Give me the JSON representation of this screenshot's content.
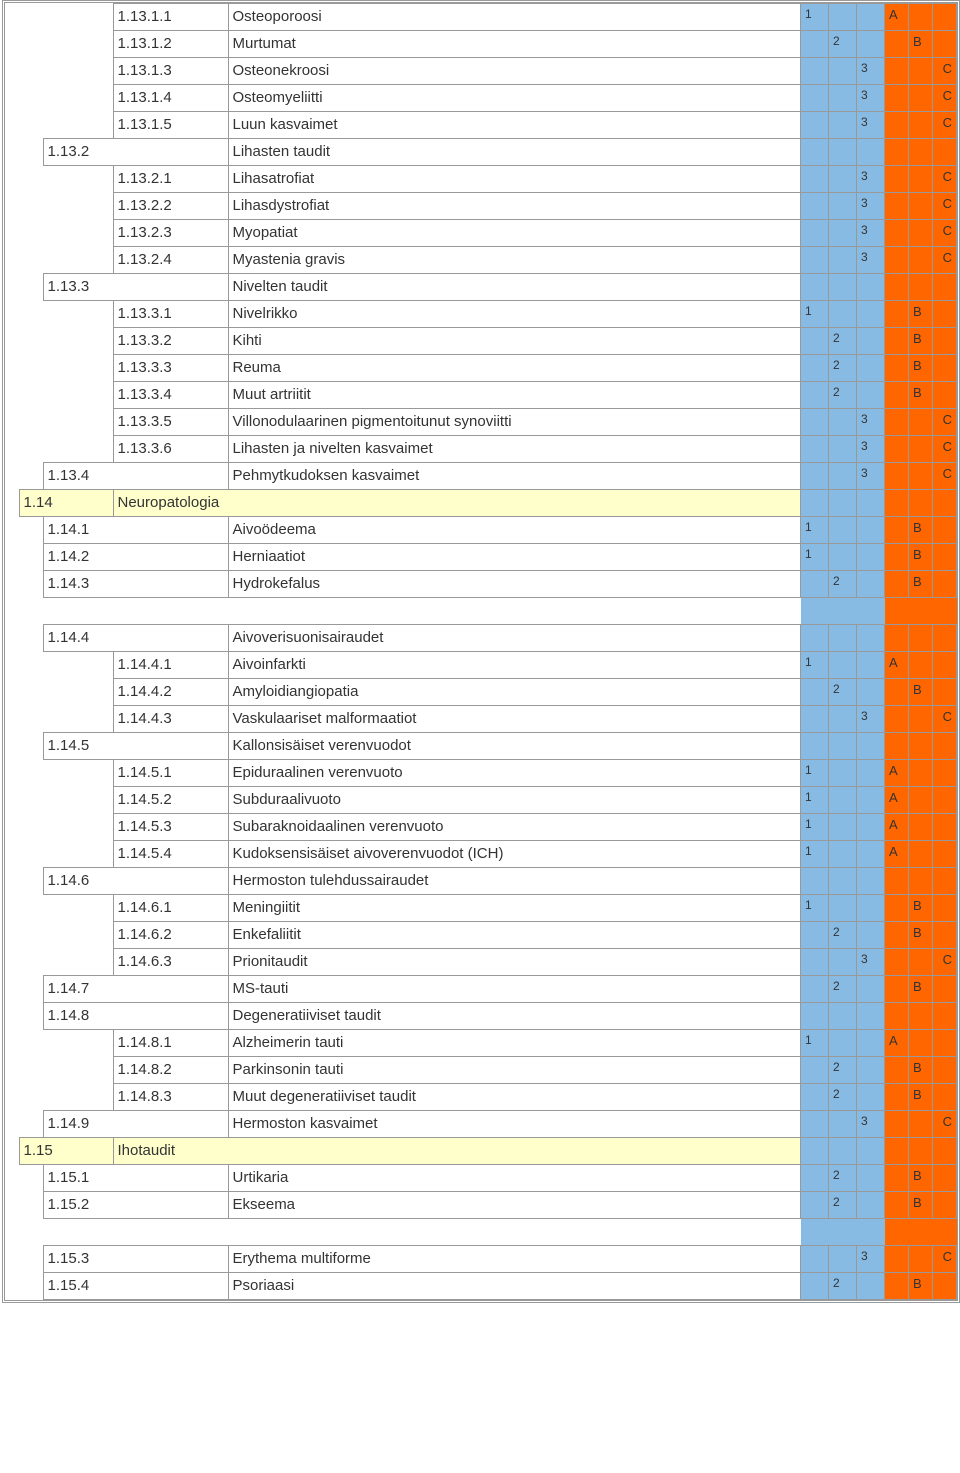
{
  "colors": {
    "blue": "#88bbe4",
    "orange": "#ff6600",
    "yellow": "#ffffcc",
    "border": "#999999",
    "text": "#333333",
    "bg": "#ffffff"
  },
  "font": {
    "family": "Verdana",
    "size_main": 15,
    "size_small": 12
  },
  "rows": [
    {
      "level": 3,
      "code": "1.13.1.1",
      "name": "Osteoporoosi",
      "n1": "1",
      "la": "A"
    },
    {
      "level": 3,
      "code": "1.13.1.2",
      "name": "Murtumat",
      "n2": "2",
      "lb": "B"
    },
    {
      "level": 3,
      "code": "1.13.1.3",
      "name": "Osteonekroosi",
      "n3": "3",
      "lc": "C"
    },
    {
      "level": 3,
      "code": "1.13.1.4",
      "name": "Osteomyeliitti",
      "n3": "3",
      "lc": "C"
    },
    {
      "level": 3,
      "code": "1.13.1.5",
      "name": "Luun kasvaimet",
      "n3": "3",
      "lc": "C"
    },
    {
      "level": 2,
      "code": "1.13.2",
      "name": "Lihasten taudit"
    },
    {
      "level": 3,
      "code": "1.13.2.1",
      "name": "Lihasatrofiat",
      "n3": "3",
      "lc": "C"
    },
    {
      "level": 3,
      "code": "1.13.2.2",
      "name": "Lihasdystrofiat",
      "n3": "3",
      "lc": "C"
    },
    {
      "level": 3,
      "code": "1.13.2.3",
      "name": "Myopatiat",
      "n3": "3",
      "lc": "C"
    },
    {
      "level": 3,
      "code": "1.13.2.4",
      "name": "Myastenia gravis",
      "n3": "3",
      "lc": "C"
    },
    {
      "level": 2,
      "code": "1.13.3",
      "name": "Nivelten taudit"
    },
    {
      "level": 3,
      "code": "1.13.3.1",
      "name": "Nivelrikko",
      "n1": "1",
      "lb": "B"
    },
    {
      "level": 3,
      "code": "1.13.3.2",
      "name": "Kihti",
      "n2": "2",
      "lb": "B"
    },
    {
      "level": 3,
      "code": "1.13.3.3",
      "name": "Reuma",
      "n2": "2",
      "lb": "B"
    },
    {
      "level": 3,
      "code": "1.13.3.4",
      "name": "Muut artriitit",
      "n2": "2",
      "lb": "B"
    },
    {
      "level": 3,
      "code": "1.13.3.5",
      "name": "Villonodulaarinen pigmentoitunut synoviitti",
      "n3": "3",
      "lc": "C"
    },
    {
      "level": 3,
      "code": "1.13.3.6",
      "name": "Lihasten ja nivelten kasvaimet",
      "n3": "3",
      "lc": "C"
    },
    {
      "level": 2,
      "code": "1.13.4",
      "name": "Pehmytkudoksen kasvaimet",
      "n3": "3",
      "lc": "C"
    },
    {
      "level": 1,
      "code": "1.14",
      "name": "Neuropatologia",
      "section": true
    },
    {
      "level": 2,
      "code": "1.14.1",
      "name": "Aivoödeema",
      "n1": "1",
      "lb": "B"
    },
    {
      "level": 2,
      "code": "1.14.2",
      "name": "Herniaatiot",
      "n1": "1",
      "lb": "B"
    },
    {
      "level": 2,
      "code": "1.14.3",
      "name": "Hydrokefalus",
      "n2": "2",
      "lb": "B"
    },
    {
      "spacer": true
    },
    {
      "level": 2,
      "code": "1.14.4",
      "name": "Aivoverisuonisairaudet"
    },
    {
      "level": 3,
      "code": "1.14.4.1",
      "name": "Aivoinfarkti",
      "n1": "1",
      "la": "A"
    },
    {
      "level": 3,
      "code": "1.14.4.2",
      "name": "Amyloidiangiopatia",
      "n2": "2",
      "lb": "B"
    },
    {
      "level": 3,
      "code": "1.14.4.3",
      "name": "Vaskulaariset malformaatiot",
      "n3": "3",
      "lc": "C"
    },
    {
      "level": 2,
      "code": "1.14.5",
      "name": "Kallonsisäiset verenvuodot"
    },
    {
      "level": 3,
      "code": "1.14.5.1",
      "name": "Epiduraalinen verenvuoto",
      "n1": "1",
      "la": "A"
    },
    {
      "level": 3,
      "code": "1.14.5.2",
      "name": "Subduraalivuoto",
      "n1": "1",
      "la": "A"
    },
    {
      "level": 3,
      "code": "1.14.5.3",
      "name": "Subaraknoidaalinen verenvuoto",
      "n1": "1",
      "la": "A"
    },
    {
      "level": 3,
      "code": "1.14.5.4",
      "name": "Kudoksensisäiset aivoverenvuodot (ICH)",
      "n1": "1",
      "la": "A"
    },
    {
      "level": 2,
      "code": "1.14.6",
      "name": "Hermoston tulehdussairaudet"
    },
    {
      "level": 3,
      "code": "1.14.6.1",
      "name": "Meningiitit",
      "n1": "1",
      "lb": "B"
    },
    {
      "level": 3,
      "code": "1.14.6.2",
      "name": "Enkefaliitit",
      "n2": "2",
      "lb": "B"
    },
    {
      "level": 3,
      "code": "1.14.6.3",
      "name": "Prionitaudit",
      "n3": "3",
      "lc": "C"
    },
    {
      "level": 2,
      "code": "1.14.7",
      "name": "MS-tauti",
      "n2": "2",
      "lb": "B"
    },
    {
      "level": 2,
      "code": "1.14.8",
      "name": "Degeneratiiviset taudit"
    },
    {
      "level": 3,
      "code": "1.14.8.1",
      "name": "Alzheimerin tauti",
      "n1": "1",
      "la": "A"
    },
    {
      "level": 3,
      "code": "1.14.8.2",
      "name": "Parkinsonin tauti",
      "n2": "2",
      "lb": "B"
    },
    {
      "level": 3,
      "code": "1.14.8.3",
      "name": "Muut degeneratiiviset taudit",
      "n2": "2",
      "lb": "B"
    },
    {
      "level": 2,
      "code": "1.14.9",
      "name": "Hermoston kasvaimet",
      "n3": "3",
      "lc": "C"
    },
    {
      "level": 1,
      "code": "1.15",
      "name": "Ihotaudit",
      "section": true
    },
    {
      "level": 2,
      "code": "1.15.1",
      "name": "Urtikaria",
      "n2": "2",
      "lb": "B"
    },
    {
      "level": 2,
      "code": "1.15.2",
      "name": "Ekseema",
      "n2": "2",
      "lb": "B"
    },
    {
      "spacer": true
    },
    {
      "level": 2,
      "code": "1.15.3",
      "name": "Erythema multiforme",
      "n3": "3",
      "lc": "C"
    },
    {
      "level": 2,
      "code": "1.15.4",
      "name": "Psoriaasi",
      "n2": "2",
      "lb": "B"
    }
  ]
}
